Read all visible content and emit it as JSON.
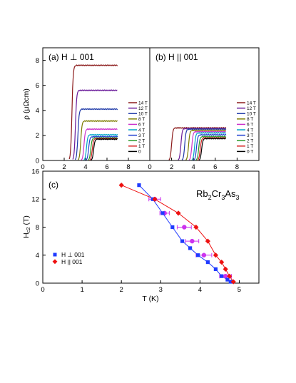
{
  "chart_data": [
    {
      "panel": "a",
      "type": "line",
      "panel_label": "(a) H ⊥ 001",
      "ylabel": "ρ (μΩcm)",
      "xlim": [
        0,
        10
      ],
      "ylim": [
        0,
        9
      ],
      "xticks": [
        0,
        2,
        4,
        6,
        8
      ],
      "yticks": [
        0,
        2,
        4,
        6,
        8
      ],
      "series": [
        {
          "name": "14 T",
          "color": "#8b1a1a",
          "Tc": 2.72,
          "rho_n": 7.6,
          "x_end": 7.0
        },
        {
          "name": "12 T",
          "color": "#6a1b9a",
          "Tc": 3.05,
          "rho_n": 5.6,
          "x_end": 7.0
        },
        {
          "name": "10 T",
          "color": "#1f3aa8",
          "Tc": 3.28,
          "rho_n": 4.1,
          "x_end": 7.0
        },
        {
          "name": "8 T",
          "color": "#7d7d00",
          "Tc": 3.55,
          "rho_n": 3.15,
          "x_end": 7.0
        },
        {
          "name": "6 T",
          "color": "#cc33cc",
          "Tc": 3.85,
          "rho_n": 2.5,
          "x_end": 7.0
        },
        {
          "name": "4 T",
          "color": "#00a6c8",
          "Tc": 4.08,
          "rho_n": 2.05,
          "x_end": 7.0
        },
        {
          "name": "3 T",
          "color": "#2040d0",
          "Tc": 4.28,
          "rho_n": 1.9,
          "x_end": 7.0
        },
        {
          "name": "2 T",
          "color": "#2a9a2a",
          "Tc": 4.48,
          "rho_n": 1.8,
          "x_end": 7.0
        },
        {
          "name": "1 T",
          "color": "#d42020",
          "Tc": 4.62,
          "rho_n": 1.75,
          "x_end": 7.0
        },
        {
          "name": "0",
          "color": "#000000",
          "Tc": 4.75,
          "rho_n": 1.7,
          "x_end": 7.0
        }
      ]
    },
    {
      "panel": "b",
      "type": "line",
      "panel_label": "(b) H || 001",
      "xlim": [
        0,
        10
      ],
      "ylim": [
        0,
        9
      ],
      "xticks": [
        0,
        2,
        4,
        6,
        8
      ],
      "series": [
        {
          "name": "14 T",
          "color": "#8b1a1a",
          "Tc": 2.0,
          "rho_n": 2.6,
          "x_end": 7.0
        },
        {
          "name": "12 T",
          "color": "#6a1b9a",
          "Tc": 2.85,
          "rho_n": 2.55,
          "x_end": 7.0
        },
        {
          "name": "10 T",
          "color": "#1f3aa8",
          "Tc": 3.2,
          "rho_n": 2.5,
          "x_end": 7.0
        },
        {
          "name": "8 T",
          "color": "#7d7d00",
          "Tc": 3.55,
          "rho_n": 2.4,
          "x_end": 7.0
        },
        {
          "name": "6 T",
          "color": "#cc33cc",
          "Tc": 3.85,
          "rho_n": 2.3,
          "x_end": 7.0
        },
        {
          "name": "4 T",
          "color": "#00a6c8",
          "Tc": 4.1,
          "rho_n": 2.2,
          "x_end": 7.0
        },
        {
          "name": "3 T",
          "color": "#2040d0",
          "Tc": 4.28,
          "rho_n": 2.05,
          "x_end": 7.0
        },
        {
          "name": "2 T",
          "color": "#2a9a2a",
          "Tc": 4.48,
          "rho_n": 1.9,
          "x_end": 7.0
        },
        {
          "name": "1 T",
          "color": "#d42020",
          "Tc": 4.62,
          "rho_n": 1.8,
          "x_end": 7.0
        },
        {
          "name": "0 T",
          "color": "#000000",
          "Tc": 4.75,
          "rho_n": 1.75,
          "x_end": 7.0
        }
      ]
    },
    {
      "panel": "c",
      "type": "scatter",
      "panel_label": "(c)",
      "compound": "Rb₂Cr₃As₃",
      "xlabel": "T (K)",
      "ylabel": "Hᴄ₂ (T)",
      "xlim": [
        0,
        5.5
      ],
      "ylim": [
        0,
        16
      ],
      "xticks": [
        0,
        1,
        2,
        3,
        4,
        5
      ],
      "yticks": [
        0,
        4,
        8,
        12,
        16
      ],
      "series": [
        {
          "name": "H ⊥ 001",
          "color": "#1f3aff",
          "marker": "square",
          "points": [
            [
              2.45,
              14
            ],
            [
              2.8,
              12
            ],
            [
              3.05,
              10
            ],
            [
              3.3,
              8
            ],
            [
              3.55,
              6
            ],
            [
              3.75,
              5
            ],
            [
              3.95,
              4
            ],
            [
              4.2,
              3
            ],
            [
              4.4,
              2
            ],
            [
              4.55,
              1
            ],
            [
              4.7,
              0.5
            ],
            [
              4.78,
              0.2
            ]
          ]
        },
        {
          "name": "H || 001",
          "color": "#ee1111",
          "marker": "diamond",
          "points": [
            [
              2.0,
              14
            ],
            [
              2.85,
              12
            ],
            [
              3.45,
              10
            ],
            [
              3.9,
              8
            ],
            [
              4.2,
              6
            ],
            [
              4.4,
              4
            ],
            [
              4.55,
              3
            ],
            [
              4.65,
              2
            ],
            [
              4.75,
              1
            ],
            [
              4.85,
              0.2
            ]
          ]
        },
        {
          "name": "",
          "color": "#cc33ee",
          "marker": "circle",
          "points": [
            [
              2.85,
              12
            ],
            [
              3.1,
              10
            ],
            [
              3.6,
              8
            ],
            [
              3.8,
              6
            ],
            [
              4.1,
              4
            ],
            [
              4.65,
              1
            ]
          ],
          "xerr": [
            0.15,
            0.12,
            0.18,
            0.17,
            0.2,
            0.15
          ]
        }
      ]
    }
  ]
}
